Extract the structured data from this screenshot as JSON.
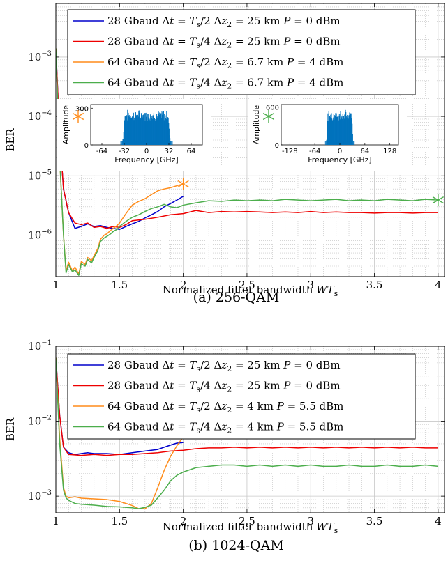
{
  "chart_data": [
    {
      "type": "line",
      "caption": "(a) 256-QAM",
      "xlabel": "Normalized filter bandwidth WT_s",
      "xlabel_parts": {
        "main": "Normalized filter bandwidth ",
        "var": "WT",
        "sub": "s"
      },
      "ylabel": "BER",
      "xlim": [
        1,
        4.05
      ],
      "ylim": [
        2e-07,
        0.008
      ],
      "yscale": "log",
      "xticks": [
        1,
        1.5,
        2,
        2.5,
        3,
        3.5,
        4
      ],
      "xticklabels": [
        "1",
        "1.5",
        "2",
        "2.5",
        "3",
        "3.5",
        "4"
      ],
      "yticks": [
        1e-06,
        1e-05,
        0.0001,
        0.001
      ],
      "yticklabels": [
        {
          "base": "10",
          "exp": "−6"
        },
        {
          "base": "10",
          "exp": "−5"
        },
        {
          "base": "10",
          "exp": "−4"
        },
        {
          "base": "10",
          "exp": "−3"
        }
      ],
      "grid": true,
      "legend": "top",
      "series": [
        {
          "name": "28 Gbaud Δt = T_s/2 Δz_2 = 25 km P = 0 dBm",
          "label": {
            "baud": "28 Gbaud",
            "dt": "Δt = T",
            "dtsub": "s",
            "dtfrac": "/2",
            "dz": "Δz",
            "dzsub": "2",
            "dzval": " = 25 km",
            "p": "P = 0 dBm"
          },
          "color": "#0000cc",
          "x": [
            1.0,
            1.03,
            1.06,
            1.1,
            1.15,
            1.2,
            1.25,
            1.3,
            1.35,
            1.4,
            1.45,
            1.5,
            1.55,
            1.6,
            1.65,
            1.7,
            1.75,
            1.8,
            1.85,
            1.9,
            1.95,
            2.0
          ],
          "y": [
            0.0014,
            5e-05,
            6e-06,
            2.4e-06,
            1.3e-06,
            1.4e-06,
            1.55e-06,
            1.4e-06,
            1.45e-06,
            1.35e-06,
            1.3e-06,
            1.25e-06,
            1.4e-06,
            1.55e-06,
            1.7e-06,
            1.95e-06,
            2.2e-06,
            2.5e-06,
            3e-06,
            3.4e-06,
            3.9e-06,
            4.5e-06
          ]
        },
        {
          "name": "28 Gbaud Δt = T_s/4 Δz_2 = 25 km P = 0 dBm",
          "label": {
            "baud": "28 Gbaud",
            "dt": "Δt = T",
            "dtsub": "s",
            "dtfrac": "/4",
            "dz": "Δz",
            "dzsub": "2",
            "dzval": " = 25 km",
            "p": "P = 0 dBm"
          },
          "color": "#ee0000",
          "x": [
            1.0,
            1.03,
            1.06,
            1.1,
            1.15,
            1.2,
            1.25,
            1.3,
            1.35,
            1.4,
            1.45,
            1.5,
            1.55,
            1.6,
            1.7,
            1.8,
            1.9,
            2.0,
            2.1,
            2.2,
            2.3,
            2.4,
            2.5,
            2.6,
            2.7,
            2.8,
            2.9,
            3.0,
            3.1,
            3.2,
            3.3,
            3.4,
            3.5,
            3.6,
            3.7,
            3.8,
            3.9,
            4.0
          ],
          "y": [
            0.0014,
            5e-05,
            6e-06,
            2.4e-06,
            1.6e-06,
            1.5e-06,
            1.6e-06,
            1.35e-06,
            1.4e-06,
            1.3e-06,
            1.4e-06,
            1.35e-06,
            1.5e-06,
            1.75e-06,
            1.85e-06,
            2e-06,
            2.2e-06,
            2.3e-06,
            2.6e-06,
            2.4e-06,
            2.5e-06,
            2.45e-06,
            2.5e-06,
            2.45e-06,
            2.4e-06,
            2.45e-06,
            2.4e-06,
            2.5e-06,
            2.4e-06,
            2.45e-06,
            2.4e-06,
            2.4e-06,
            2.35e-06,
            2.4e-06,
            2.4e-06,
            2.35e-06,
            2.4e-06,
            2.4e-06
          ]
        },
        {
          "name": "64 Gbaud Δt = T_s/2 Δz_2 = 6.7 km P = 4 dBm",
          "label": {
            "baud": "64 Gbaud",
            "dt": "Δt = T",
            "dtsub": "s",
            "dtfrac": "/2",
            "dz": "Δz",
            "dzsub": "2",
            "dzval": " = 6.7 km",
            "p": "P = 4 dBm"
          },
          "color": "#ff8c1a",
          "x": [
            1.0,
            1.03,
            1.06,
            1.08,
            1.1,
            1.13,
            1.15,
            1.18,
            1.2,
            1.23,
            1.25,
            1.28,
            1.3,
            1.33,
            1.35,
            1.38,
            1.4,
            1.43,
            1.45,
            1.48,
            1.5,
            1.55,
            1.6,
            1.65,
            1.7,
            1.75,
            1.8,
            1.85,
            1.9,
            1.95,
            2.0
          ],
          "y": [
            0.0014,
            2e-05,
            1e-06,
            2.5e-07,
            3.5e-07,
            2.5e-07,
            2.9e-07,
            2.2e-07,
            3.6e-07,
            3.2e-07,
            4.2e-07,
            3.7e-07,
            4.5e-07,
            6e-07,
            8.5e-07,
            1e-06,
            1.05e-06,
            1.2e-06,
            1.3e-06,
            1.45e-06,
            1.6e-06,
            2.3e-06,
            3.2e-06,
            3.7e-06,
            4.1e-06,
            4.8e-06,
            5.6e-06,
            6e-06,
            6.3e-06,
            6.8e-06,
            7.3e-06
          ]
        },
        {
          "name": "64 Gbaud Δt = T_s/4 Δz_2 = 6.7 km P = 4 dBm",
          "label": {
            "baud": "64 Gbaud",
            "dt": "Δt = T",
            "dtsub": "s",
            "dtfrac": "/4",
            "dz": "Δz",
            "dzsub": "2",
            "dzval": " = 6.7 km",
            "p": "P = 4 dBm"
          },
          "color": "#4cae4c",
          "x": [
            1.0,
            1.03,
            1.06,
            1.08,
            1.1,
            1.13,
            1.15,
            1.18,
            1.2,
            1.23,
            1.25,
            1.28,
            1.3,
            1.33,
            1.35,
            1.38,
            1.4,
            1.43,
            1.45,
            1.48,
            1.5,
            1.55,
            1.6,
            1.65,
            1.7,
            1.75,
            1.8,
            1.85,
            1.9,
            1.95,
            2.0,
            2.1,
            2.2,
            2.3,
            2.4,
            2.5,
            2.6,
            2.7,
            2.8,
            2.9,
            3.0,
            3.1,
            3.2,
            3.3,
            3.4,
            3.5,
            3.6,
            3.7,
            3.8,
            3.9,
            4.0
          ],
          "y": [
            0.0014,
            2e-05,
            1e-06,
            2.3e-07,
            3.2e-07,
            2.4e-07,
            2.6e-07,
            2.1e-07,
            3.3e-07,
            3e-07,
            3.9e-07,
            3.4e-07,
            4.2e-07,
            5.5e-07,
            7.8e-07,
            9e-07,
            9.5e-07,
            1.05e-06,
            1.15e-06,
            1.25e-06,
            1.4e-06,
            1.7e-06,
            2e-06,
            2.2e-06,
            2.5e-06,
            2.8e-06,
            3e-06,
            3.3e-06,
            3e-06,
            2.9e-06,
            3.2e-06,
            3.5e-06,
            3.8e-06,
            3.7e-06,
            3.9e-06,
            3.8e-06,
            3.9e-06,
            3.8e-06,
            4e-06,
            3.9e-06,
            3.8e-06,
            3.9e-06,
            4e-06,
            3.8e-06,
            3.9e-06,
            3.8e-06,
            4e-06,
            3.9e-06,
            3.8e-06,
            4e-06,
            3.9e-06
          ]
        }
      ],
      "markers": [
        {
          "x": 2.0,
          "y": 7.3e-06,
          "color": "#ff8c1a"
        },
        {
          "x": 4.0,
          "y": 3.9e-06,
          "color": "#4cae4c"
        }
      ],
      "insets": [
        {
          "ylabel": "Amplitude",
          "xlabel": "Frequency [GHz]",
          "xticks": [
            -64,
            -32,
            0,
            32,
            64
          ],
          "xticklabels": [
            "-64",
            "-32",
            "0",
            "32",
            "64"
          ],
          "xlim": [
            -80,
            80
          ],
          "yticks": [
            0,
            300
          ],
          "yticklabels": [
            "0",
            "300"
          ],
          "ylim": [
            0,
            330
          ],
          "band": [
            -34,
            34
          ],
          "level": 260,
          "color": "#0072bd",
          "marker_color": "#ff8c1a"
        },
        {
          "ylabel": "Amplitude",
          "xlabel": "Frequency [GHz]",
          "xticks": [
            -128,
            -64,
            0,
            64,
            128
          ],
          "xticklabels": [
            "-128",
            "-64",
            "0",
            "64",
            "128"
          ],
          "xlim": [
            -150,
            150
          ],
          "yticks": [
            0,
            600
          ],
          "yticklabels": [
            "0",
            "600"
          ],
          "ylim": [
            0,
            640
          ],
          "band": [
            -34,
            34
          ],
          "level": 500,
          "color": "#0072bd",
          "marker_color": "#4cae4c"
        }
      ]
    },
    {
      "type": "line",
      "caption": "(b) 1024-QAM",
      "xlabel": "Normalized filter bandwidth WT_s",
      "xlabel_parts": {
        "main": "Normalized filter bandwidth ",
        "var": "WT",
        "sub": "s"
      },
      "ylabel": "BER",
      "xlim": [
        1,
        4.05
      ],
      "ylim": [
        0.0006,
        0.1
      ],
      "yscale": "log",
      "xticks": [
        1,
        1.5,
        2,
        2.5,
        3,
        3.5,
        4
      ],
      "xticklabels": [
        "1",
        "1.5",
        "2",
        "2.5",
        "3",
        "3.5",
        "4"
      ],
      "yticks": [
        0.001,
        0.01,
        0.1
      ],
      "yticklabels": [
        {
          "base": "10",
          "exp": "−3"
        },
        {
          "base": "10",
          "exp": "−2"
        },
        {
          "base": "10",
          "exp": "−1"
        }
      ],
      "grid": true,
      "legend": "top",
      "series": [
        {
          "name": "28 Gbaud Δt = T_s/2 Δz_2 = 25 km P = 0 dBm",
          "label": {
            "baud": "28 Gbaud",
            "dt": "Δt = T",
            "dtsub": "s",
            "dtfrac": "/2",
            "dz": "Δz",
            "dzsub": "2",
            "dzval": " = 25 km",
            "p": "P = 0 dBm"
          },
          "color": "#0000cc",
          "x": [
            1.0,
            1.03,
            1.06,
            1.1,
            1.15,
            1.2,
            1.25,
            1.3,
            1.4,
            1.5,
            1.6,
            1.7,
            1.8,
            1.85,
            1.9,
            1.95,
            2.0
          ],
          "y": [
            0.07,
            0.012,
            0.0045,
            0.0038,
            0.0036,
            0.0037,
            0.0038,
            0.0037,
            0.0037,
            0.0036,
            0.0038,
            0.004,
            0.0042,
            0.0045,
            0.0048,
            0.0051,
            0.0052
          ]
        },
        {
          "name": "28 Gbaud Δt = T_s/4 Δz_2 = 25 km P = 0 dBm",
          "label": {
            "baud": "28 Gbaud",
            "dt": "Δt = T",
            "dtsub": "s",
            "dtfrac": "/4",
            "dz": "Δz",
            "dzsub": "2",
            "dzval": " = 25 km",
            "p": "P = 0 dBm"
          },
          "color": "#ee0000",
          "x": [
            1.0,
            1.03,
            1.06,
            1.1,
            1.2,
            1.3,
            1.4,
            1.5,
            1.6,
            1.7,
            1.8,
            1.9,
            2.0,
            2.1,
            2.2,
            2.3,
            2.4,
            2.5,
            2.6,
            2.7,
            2.8,
            2.9,
            3.0,
            3.1,
            3.2,
            3.3,
            3.4,
            3.5,
            3.6,
            3.7,
            3.8,
            3.9,
            4.0
          ],
          "y": [
            0.07,
            0.012,
            0.0045,
            0.0036,
            0.0035,
            0.0036,
            0.0035,
            0.0036,
            0.0036,
            0.0037,
            0.0038,
            0.004,
            0.0041,
            0.0043,
            0.0044,
            0.0044,
            0.0045,
            0.0044,
            0.0045,
            0.0044,
            0.0045,
            0.0044,
            0.0045,
            0.0044,
            0.0045,
            0.0044,
            0.0045,
            0.0044,
            0.0045,
            0.0044,
            0.0045,
            0.0044,
            0.0044
          ]
        },
        {
          "name": "64 Gbaud Δt = T_s/2 Δz_2 = 4 km P = 5.5 dBm",
          "label": {
            "baud": "64 Gbaud",
            "dt": "Δt = T",
            "dtsub": "s",
            "dtfrac": "/2",
            "dz": "Δz",
            "dzsub": "2",
            "dzval": " = 4 km",
            "p": "P = 5.5 dBm"
          },
          "color": "#ff8c1a",
          "x": [
            1.0,
            1.03,
            1.06,
            1.08,
            1.1,
            1.15,
            1.2,
            1.3,
            1.4,
            1.5,
            1.55,
            1.6,
            1.65,
            1.7,
            1.75,
            1.8,
            1.85,
            1.9,
            1.95,
            2.0
          ],
          "y": [
            0.07,
            0.006,
            0.0013,
            0.001,
            0.00095,
            0.00098,
            0.00094,
            0.00092,
            0.0009,
            0.00085,
            0.0008,
            0.00075,
            0.00068,
            0.00068,
            0.0008,
            0.0013,
            0.0022,
            0.0034,
            0.0047,
            0.0062
          ]
        },
        {
          "name": "64 Gbaud Δt = T_s/4 Δz_2 = 4 km P = 5.5 dBm",
          "label": {
            "baud": "64 Gbaud",
            "dt": "Δt = T",
            "dtsub": "s",
            "dtfrac": "/4",
            "dz": "Δz",
            "dzsub": "2",
            "dzval": " = 4 km",
            "p": "P = 5.5 dBm"
          },
          "color": "#4cae4c",
          "x": [
            1.0,
            1.03,
            1.06,
            1.08,
            1.1,
            1.15,
            1.2,
            1.3,
            1.4,
            1.5,
            1.6,
            1.65,
            1.7,
            1.75,
            1.8,
            1.85,
            1.9,
            1.95,
            2.0,
            2.1,
            2.2,
            2.3,
            2.4,
            2.5,
            2.6,
            2.7,
            2.8,
            2.9,
            3.0,
            3.1,
            3.2,
            3.3,
            3.4,
            3.5,
            3.6,
            3.7,
            3.8,
            3.9,
            4.0
          ],
          "y": [
            0.07,
            0.005,
            0.0012,
            0.00095,
            0.00088,
            0.0008,
            0.00078,
            0.00076,
            0.00073,
            0.00072,
            0.0007,
            0.00068,
            0.00071,
            0.00076,
            0.00095,
            0.0012,
            0.0016,
            0.0019,
            0.0021,
            0.0024,
            0.0025,
            0.0026,
            0.0026,
            0.0025,
            0.0026,
            0.0025,
            0.0026,
            0.0025,
            0.0026,
            0.0025,
            0.0025,
            0.0026,
            0.0025,
            0.0025,
            0.0026,
            0.0025,
            0.0025,
            0.0026,
            0.0025
          ]
        }
      ]
    }
  ]
}
